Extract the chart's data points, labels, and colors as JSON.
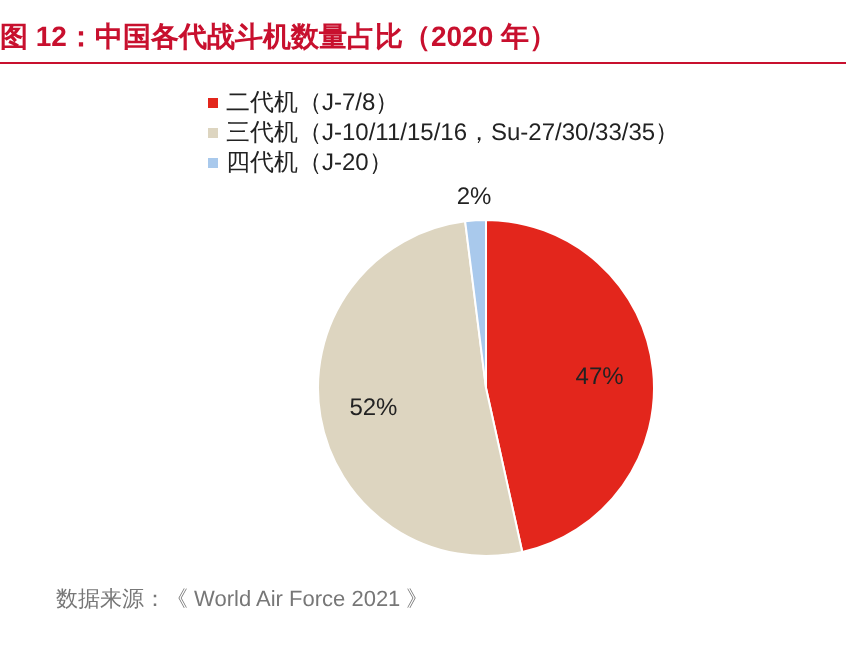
{
  "chart_data": {
    "type": "pie",
    "title": "图 12：中国各代战斗机数量占比（2020 年）",
    "categories": [
      "二代机（J-7/8）",
      "三代机（J-10/11/15/16，Su-27/30/33/35）",
      "四代机（J-20）"
    ],
    "values": [
      47,
      52,
      2
    ],
    "colors": [
      "#e3261c",
      "#ddd5c0",
      "#a9c9ec"
    ],
    "legend": "top left",
    "value_labels": [
      "47%",
      "52%",
      "2%"
    ],
    "annotations": [
      "数据来源：《 World Air Force 2021 》"
    ]
  }
}
